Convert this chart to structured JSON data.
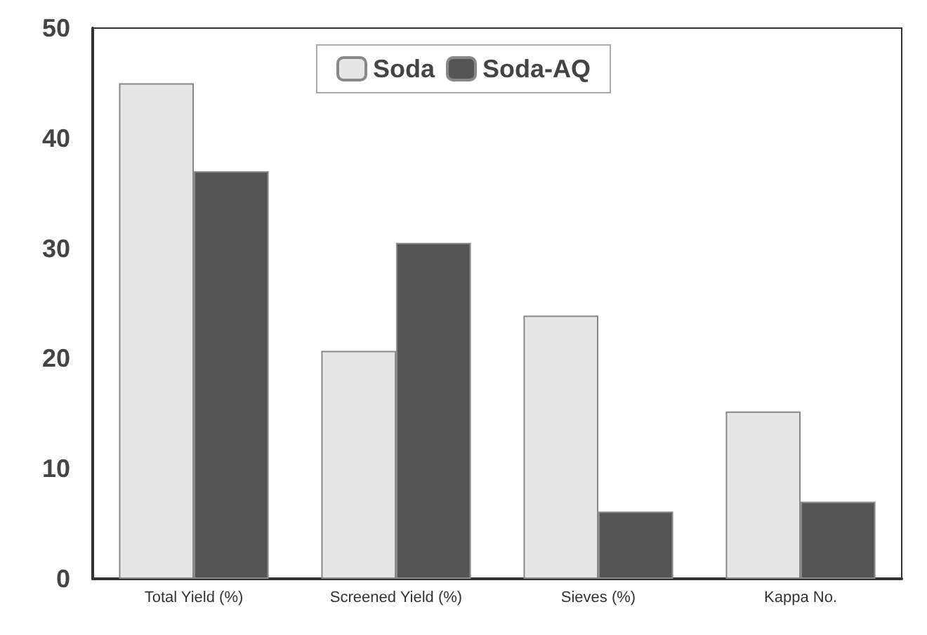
{
  "chart_data": {
    "type": "bar",
    "categories": [
      "Total Yield (%)",
      "Screened Yield (%)",
      "Sieves (%)",
      "Kappa No."
    ],
    "series": [
      {
        "name": "Soda",
        "color": "#e6e6e6",
        "values": [
          45,
          20.7,
          23.9,
          15.2
        ]
      },
      {
        "name": "Soda-AQ",
        "color": "#555555",
        "values": [
          37,
          30.5,
          6.1,
          7
        ]
      }
    ],
    "ylim": [
      0,
      50
    ],
    "yticks": [
      0,
      10,
      20,
      30,
      40,
      50
    ],
    "grid": false,
    "legend": "top"
  }
}
